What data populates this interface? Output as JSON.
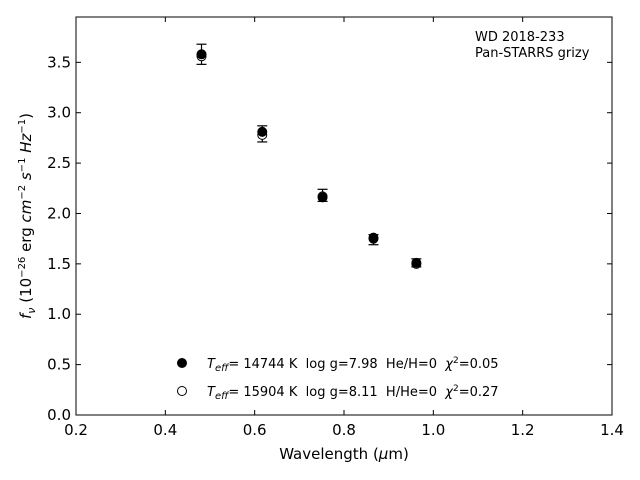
{
  "chart_data": {
    "type": "scatter",
    "xlabel": "Wavelength (μm)",
    "ylabel": "f_ν (10^−26 erg cm^−2 s^−1 Hz^−1)",
    "xlim": [
      0.2,
      1.4
    ],
    "ylim": [
      0.0,
      3.95
    ],
    "xticks": [
      "0.2",
      "0.4",
      "0.6",
      "0.8",
      "1.0",
      "1.2",
      "1.4"
    ],
    "yticks": [
      "0.0",
      "0.5",
      "1.0",
      "1.5",
      "2.0",
      "2.5",
      "3.0",
      "3.5"
    ],
    "xtick_values": [
      0.2,
      0.4,
      0.6,
      0.8,
      1.0,
      1.2,
      1.4
    ],
    "ytick_values": [
      0.0,
      0.5,
      1.0,
      1.5,
      2.0,
      2.5,
      3.0,
      3.5
    ],
    "grid": false,
    "annotation_lines": [
      "WD 2018-233",
      "Pan-STARRS grizy"
    ],
    "observed": {
      "x": [
        0.481,
        0.617,
        0.752,
        0.866,
        0.962
      ],
      "y": [
        3.58,
        2.79,
        2.18,
        1.74,
        1.51
      ],
      "yerr": [
        0.1,
        0.08,
        0.06,
        0.05,
        0.04
      ]
    },
    "series": [
      {
        "name": "Teff= 14744 K log g=7.98 He/H=0 χ2=0.05",
        "marker": "filled-circle",
        "x": [
          0.481,
          0.617,
          0.752,
          0.866,
          0.962
        ],
        "y": [
          3.58,
          2.81,
          2.16,
          1.76,
          1.51
        ]
      },
      {
        "name": "Teff= 15904 K log g=8.11 H/He=0 χ2=0.27",
        "marker": "open-circle",
        "x": [
          0.481,
          0.617,
          0.752,
          0.866,
          0.962
        ],
        "y": [
          3.56,
          2.78,
          2.17,
          1.75,
          1.5
        ]
      }
    ],
    "legend": {
      "placement": "bottom-center",
      "entries": [
        {
          "t": "T",
          "sub": "eff",
          "rest": "= 14744 K  log g=7.98  He/H=0  ",
          "chi": "χ",
          "sup": "2",
          "end": "=0.05"
        },
        {
          "t": "T",
          "sub": "eff",
          "rest": "= 15904 K  log g=8.11  H/He=0  ",
          "chi": "χ",
          "sup": "2",
          "end": "=0.27"
        }
      ]
    }
  },
  "colors": {
    "axis": "#000000",
    "marker": "#000000",
    "background": "#ffffff"
  }
}
